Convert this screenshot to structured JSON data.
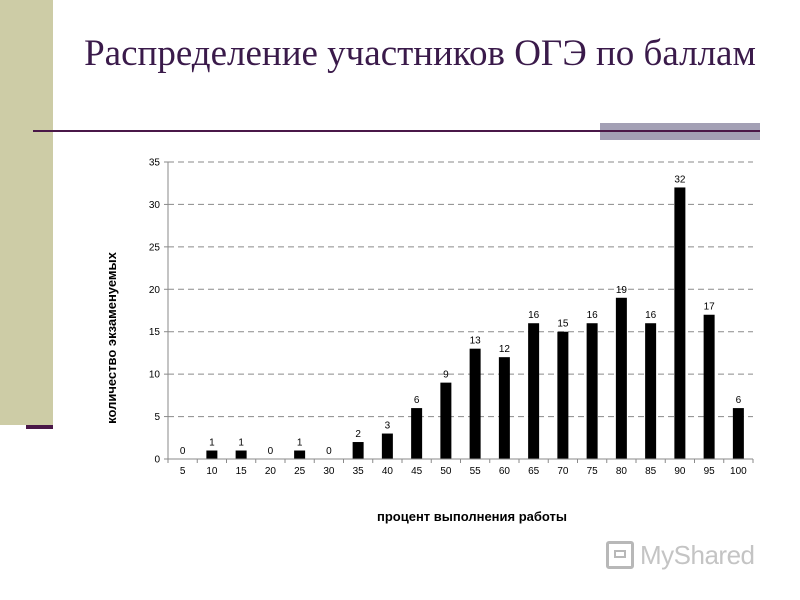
{
  "slide": {
    "title": "Распределение участников ОГЭ по баллам",
    "watermark": "MyShared",
    "colors": {
      "left_band": "#cdcca6",
      "rule": "#4a1848",
      "accent": "#a3a0b5",
      "title": "#3a1a4a",
      "bar": "#000000"
    }
  },
  "chart_data": {
    "type": "bar",
    "xlabel": "процент выполнения работы",
    "ylabel": "количество экзаменуемых",
    "categories": [
      "5",
      "10",
      "15",
      "20",
      "25",
      "30",
      "35",
      "40",
      "45",
      "50",
      "55",
      "60",
      "65",
      "70",
      "75",
      "80",
      "85",
      "90",
      "95",
      "100"
    ],
    "values": [
      0,
      1,
      1,
      0,
      1,
      0,
      2,
      3,
      6,
      9,
      13,
      12,
      16,
      15,
      16,
      19,
      16,
      32,
      17,
      6
    ],
    "ylim": [
      0,
      35
    ],
    "yticks": [
      0,
      5,
      10,
      15,
      20,
      25,
      30,
      35
    ],
    "grid": "horizontal-dashed",
    "data_labels": true,
    "legend": "none"
  }
}
